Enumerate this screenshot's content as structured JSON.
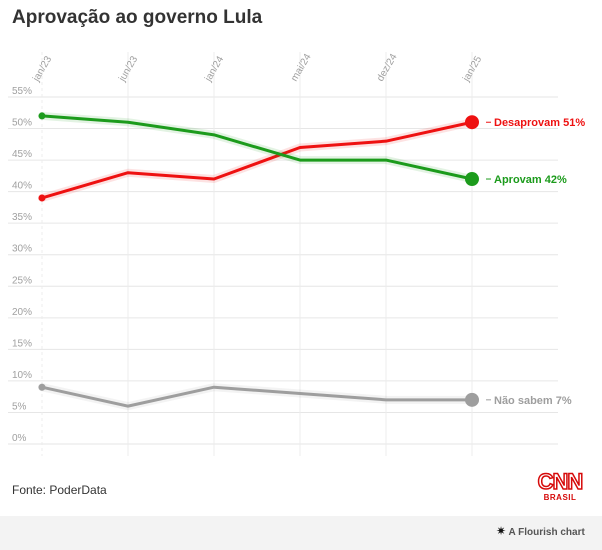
{
  "title": "Aprovação ao governo Lula",
  "source": "Fonte: PoderData",
  "logo": {
    "name": "CNN",
    "sub": "BRASIL"
  },
  "credit": {
    "icon": "flourish-star-icon",
    "text": "A Flourish chart"
  },
  "chart_data": {
    "type": "line",
    "title": "Aprovação ao governo Lula",
    "xlabel": "",
    "ylabel": "",
    "x_ticks": [
      "jan/23",
      "jun/23",
      "jan/24",
      "mai/24",
      "dez/24",
      "jan/25"
    ],
    "y_ticks": [
      "0%",
      "5%",
      "10%",
      "15%",
      "20%",
      "25%",
      "30%",
      "35%",
      "40%",
      "45%",
      "50%",
      "55%"
    ],
    "ylim": [
      0,
      55
    ],
    "grid": true,
    "series": [
      {
        "key": "desaprovam",
        "label": "Desaprovam 51%",
        "color": "#ee1111",
        "values": [
          39,
          43,
          42,
          47,
          48,
          51
        ]
      },
      {
        "key": "aprovam",
        "label": "Aprovam 42%",
        "color": "#1c9b1c",
        "values": [
          52,
          51,
          49,
          45,
          45,
          42
        ]
      },
      {
        "key": "nao_sabem",
        "label": "Não sabem 7%",
        "color": "#9e9e9e",
        "values": [
          9,
          6,
          9,
          8,
          7,
          7
        ]
      }
    ]
  }
}
